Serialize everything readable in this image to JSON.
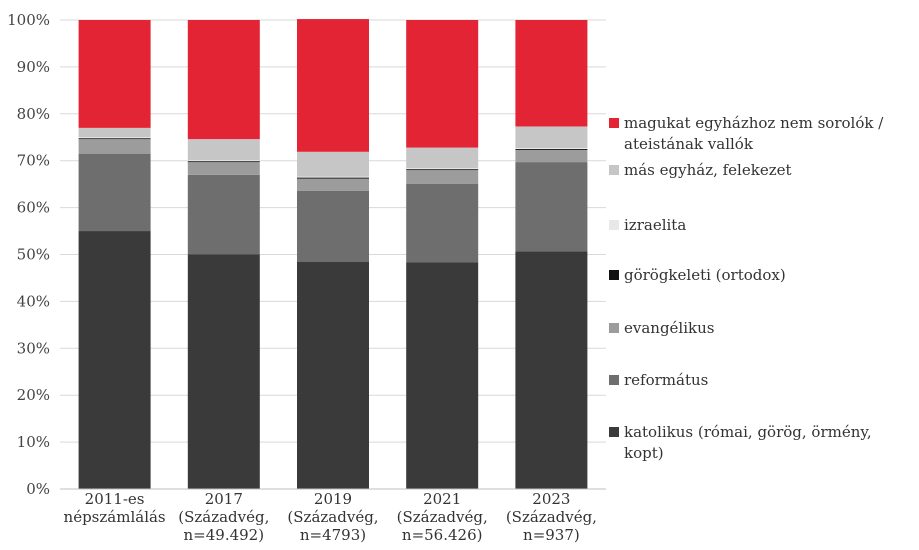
{
  "chart_data": {
    "type": "bar",
    "stacked": true,
    "categories": [
      [
        "2011-es",
        "népszámlálás"
      ],
      [
        "2017",
        "(Századvég,",
        "n=49.492)"
      ],
      [
        "2019",
        "(Századvég,",
        "n=4793)"
      ],
      [
        "2021",
        "(Századvég,",
        "n=56.426)"
      ],
      [
        "2023",
        "(Századvég,",
        "n=937)"
      ]
    ],
    "ylim": [
      0,
      100
    ],
    "y_ticks": [
      "0%",
      "10%",
      "20%",
      "30%",
      "40%",
      "50%",
      "60%",
      "70%",
      "80%",
      "90%",
      "100%"
    ],
    "grid": true,
    "legend_position": "right",
    "series": [
      {
        "name": "katolikus (római, görög, örmény, kopt)",
        "color": "#3a3a3a",
        "values": [
          55.0,
          50.0,
          48.4,
          48.3,
          50.7
        ]
      },
      {
        "name": "református",
        "color": "#6e6e6e",
        "values": [
          16.5,
          17.0,
          15.2,
          16.8,
          19.0
        ]
      },
      {
        "name": "evangélikus",
        "color": "#9c9c9c",
        "values": [
          3.1,
          2.7,
          2.6,
          2.9,
          2.6
        ]
      },
      {
        "name": "görögkeleti (ortodox)",
        "color": "#111111",
        "values": [
          0.2,
          0.2,
          0.2,
          0.2,
          0.2
        ]
      },
      {
        "name": "izraelita",
        "color": "#e8e8e8",
        "values": [
          0.2,
          0.2,
          0.2,
          0.2,
          0.2
        ]
      },
      {
        "name": "más egyház, felekezet",
        "color": "#c6c6c6",
        "values": [
          2.0,
          4.5,
          5.3,
          4.4,
          4.6
        ]
      },
      {
        "name": "magukat egyházhoz nem sorolók / ateistának vallók",
        "color": "#e32434",
        "values": [
          23.0,
          25.4,
          28.3,
          27.2,
          22.7
        ]
      }
    ]
  },
  "legend": [
    {
      "lines": [
        "magukat egyházhoz nem sorolók /",
        "ateistának vallók"
      ],
      "color": "#e32434"
    },
    {
      "lines": [
        "más egyház, felekezet"
      ],
      "color": "#c6c6c6"
    },
    {
      "lines": [
        "izraelita"
      ],
      "color": "#e8e8e8"
    },
    {
      "lines": [
        "görögkeleti (ortodox)"
      ],
      "color": "#111111"
    },
    {
      "lines": [
        "evangélikus"
      ],
      "color": "#9c9c9c"
    },
    {
      "lines": [
        "református"
      ],
      "color": "#6e6e6e"
    },
    {
      "lines": [
        "katolikus (római, görög, örmény, kopt)"
      ],
      "color": "#3a3a3a"
    }
  ]
}
